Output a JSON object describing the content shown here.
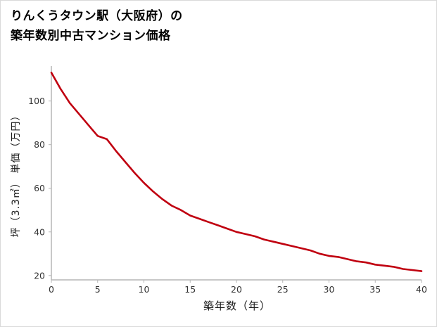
{
  "title": {
    "line1": "りんくうタウン駅（大阪府）の",
    "line2": "築年数別中古マンション価格"
  },
  "chart_data": {
    "type": "line",
    "title": "りんくうタウン駅（大阪府）の築年数別中古マンション価格",
    "xlabel": "築年数（年）",
    "ylabel": "坪（3.3㎡） 単価（万円）",
    "x": [
      0,
      1,
      2,
      3,
      4,
      5,
      6,
      7,
      8,
      9,
      10,
      11,
      12,
      13,
      14,
      15,
      16,
      17,
      18,
      19,
      20,
      21,
      22,
      23,
      24,
      25,
      26,
      27,
      28,
      29,
      30,
      31,
      32,
      33,
      34,
      35,
      36,
      37,
      38,
      39,
      40
    ],
    "values": [
      113,
      105.5,
      99,
      94,
      89,
      84,
      82.5,
      77,
      72,
      67,
      62.5,
      58.5,
      55,
      52,
      50,
      47.5,
      46,
      44.5,
      43,
      41.5,
      40,
      39,
      38,
      36.5,
      35.5,
      34.5,
      33.5,
      32.5,
      31.5,
      30,
      29,
      28.5,
      27.5,
      26.5,
      26,
      25,
      24.5,
      24,
      23,
      22.5,
      22
    ],
    "xticks": [
      0,
      5,
      10,
      15,
      20,
      25,
      30,
      35,
      40
    ],
    "yticks": [
      20,
      40,
      60,
      80,
      100
    ],
    "xlim": [
      0,
      40
    ],
    "ylim": [
      18,
      116
    ],
    "grid": false,
    "legend": false,
    "line_color": "#c00010",
    "axis_color": "#b5b5b5",
    "tick_label_color": "#333333"
  }
}
